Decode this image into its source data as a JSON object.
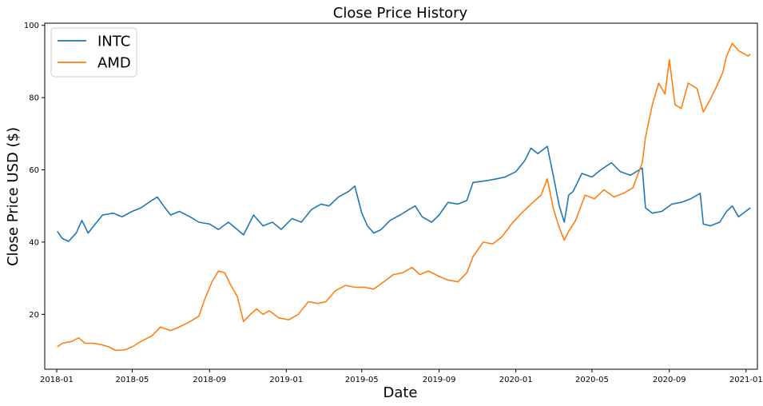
{
  "chart_data": {
    "type": "line",
    "title": "Close Price History",
    "xlabel": "Date",
    "ylabel": "Close Price USD ($)",
    "xlim": [
      "2017-12-13",
      "2021-01-19"
    ],
    "ylim": [
      4.8,
      100.6
    ],
    "x_ticks": [
      "2018-01",
      "2018-05",
      "2018-09",
      "2019-01",
      "2019-05",
      "2019-09",
      "2020-01",
      "2020-05",
      "2020-09",
      "2021-01"
    ],
    "y_ticks": [
      20,
      40,
      60,
      80,
      100
    ],
    "grid": false,
    "legend_position": "top-left",
    "series": [
      {
        "name": "INTC",
        "color": "#1f77b4",
        "points": [
          [
            "2018-01-02",
            43.0
          ],
          [
            "2018-01-10",
            41.0
          ],
          [
            "2018-01-20",
            40.2
          ],
          [
            "2018-02-01",
            42.5
          ],
          [
            "2018-02-10",
            46.0
          ],
          [
            "2018-02-20",
            42.5
          ],
          [
            "2018-03-01",
            44.5
          ],
          [
            "2018-03-15",
            47.5
          ],
          [
            "2018-04-01",
            48.0
          ],
          [
            "2018-04-15",
            47.0
          ],
          [
            "2018-05-01",
            48.5
          ],
          [
            "2018-05-15",
            49.5
          ],
          [
            "2018-06-01",
            51.5
          ],
          [
            "2018-06-10",
            52.5
          ],
          [
            "2018-06-20",
            50.0
          ],
          [
            "2018-07-01",
            47.5
          ],
          [
            "2018-07-15",
            48.5
          ],
          [
            "2018-08-01",
            47.0
          ],
          [
            "2018-08-15",
            45.5
          ],
          [
            "2018-09-01",
            45.0
          ],
          [
            "2018-09-15",
            43.5
          ],
          [
            "2018-10-01",
            45.5
          ],
          [
            "2018-10-15",
            43.5
          ],
          [
            "2018-10-25",
            42.0
          ],
          [
            "2018-11-10",
            47.5
          ],
          [
            "2018-11-25",
            44.5
          ],
          [
            "2018-12-10",
            45.5
          ],
          [
            "2018-12-24",
            43.5
          ],
          [
            "2019-01-10",
            46.5
          ],
          [
            "2019-01-25",
            45.5
          ],
          [
            "2019-02-10",
            49.0
          ],
          [
            "2019-02-25",
            50.5
          ],
          [
            "2019-03-10",
            50.0
          ],
          [
            "2019-03-25",
            52.5
          ],
          [
            "2019-04-10",
            54.0
          ],
          [
            "2019-04-20",
            55.5
          ],
          [
            "2019-05-01",
            48.0
          ],
          [
            "2019-05-10",
            44.5
          ],
          [
            "2019-05-20",
            42.5
          ],
          [
            "2019-06-01",
            43.5
          ],
          [
            "2019-06-15",
            46.0
          ],
          [
            "2019-07-01",
            47.5
          ],
          [
            "2019-07-15",
            49.0
          ],
          [
            "2019-07-25",
            50.0
          ],
          [
            "2019-08-05",
            47.0
          ],
          [
            "2019-08-20",
            45.5
          ],
          [
            "2019-09-01",
            47.5
          ],
          [
            "2019-09-15",
            51.0
          ],
          [
            "2019-10-01",
            50.5
          ],
          [
            "2019-10-15",
            51.5
          ],
          [
            "2019-10-25",
            56.5
          ],
          [
            "2019-11-15",
            57.0
          ],
          [
            "2019-12-01",
            57.5
          ],
          [
            "2019-12-15",
            58.0
          ],
          [
            "2020-01-01",
            59.5
          ],
          [
            "2020-01-15",
            62.5
          ],
          [
            "2020-01-25",
            66.0
          ],
          [
            "2020-02-05",
            64.5
          ],
          [
            "2020-02-20",
            66.5
          ],
          [
            "2020-03-01",
            58.0
          ],
          [
            "2020-03-10",
            50.0
          ],
          [
            "2020-03-18",
            45.5
          ],
          [
            "2020-03-25",
            53.0
          ],
          [
            "2020-04-01",
            54.0
          ],
          [
            "2020-04-15",
            59.0
          ],
          [
            "2020-05-01",
            58.0
          ],
          [
            "2020-05-15",
            60.0
          ],
          [
            "2020-06-01",
            62.0
          ],
          [
            "2020-06-15",
            59.5
          ],
          [
            "2020-07-01",
            58.5
          ],
          [
            "2020-07-20",
            60.5
          ],
          [
            "2020-07-25",
            49.5
          ],
          [
            "2020-08-05",
            48.0
          ],
          [
            "2020-08-20",
            48.5
          ],
          [
            "2020-09-05",
            50.5
          ],
          [
            "2020-09-20",
            51.0
          ],
          [
            "2020-10-05",
            52.0
          ],
          [
            "2020-10-20",
            53.5
          ],
          [
            "2020-10-25",
            45.0
          ],
          [
            "2020-11-05",
            44.5
          ],
          [
            "2020-11-20",
            45.5
          ],
          [
            "2020-12-01",
            48.5
          ],
          [
            "2020-12-10",
            50.0
          ],
          [
            "2020-12-20",
            47.0
          ],
          [
            "2021-01-04",
            49.0
          ],
          [
            "2021-01-08",
            49.5
          ]
        ]
      },
      {
        "name": "AMD",
        "color": "#ff7f0e",
        "points": [
          [
            "2018-01-02",
            11.0
          ],
          [
            "2018-01-10",
            12.0
          ],
          [
            "2018-01-25",
            12.5
          ],
          [
            "2018-02-05",
            13.5
          ],
          [
            "2018-02-15",
            12.0
          ],
          [
            "2018-03-01",
            12.0
          ],
          [
            "2018-03-15",
            11.5
          ],
          [
            "2018-03-25",
            11.0
          ],
          [
            "2018-04-05",
            10.0
          ],
          [
            "2018-04-20",
            10.2
          ],
          [
            "2018-05-01",
            11.0
          ],
          [
            "2018-05-15",
            12.5
          ],
          [
            "2018-06-01",
            14.0
          ],
          [
            "2018-06-15",
            16.5
          ],
          [
            "2018-07-01",
            15.5
          ],
          [
            "2018-07-15",
            16.5
          ],
          [
            "2018-08-01",
            18.0
          ],
          [
            "2018-08-15",
            19.5
          ],
          [
            "2018-08-25",
            24.5
          ],
          [
            "2018-09-05",
            29.0
          ],
          [
            "2018-09-15",
            32.0
          ],
          [
            "2018-09-25",
            31.5
          ],
          [
            "2018-10-05",
            28.0
          ],
          [
            "2018-10-15",
            25.0
          ],
          [
            "2018-10-25",
            18.0
          ],
          [
            "2018-11-05",
            20.0
          ],
          [
            "2018-11-15",
            21.5
          ],
          [
            "2018-11-25",
            20.0
          ],
          [
            "2018-12-05",
            21.0
          ],
          [
            "2018-12-20",
            19.0
          ],
          [
            "2019-01-05",
            18.5
          ],
          [
            "2019-01-20",
            20.0
          ],
          [
            "2019-02-05",
            23.5
          ],
          [
            "2019-02-20",
            23.0
          ],
          [
            "2019-03-05",
            23.5
          ],
          [
            "2019-03-20",
            26.5
          ],
          [
            "2019-04-05",
            28.0
          ],
          [
            "2019-04-20",
            27.5
          ],
          [
            "2019-05-05",
            27.5
          ],
          [
            "2019-05-20",
            27.0
          ],
          [
            "2019-06-05",
            29.0
          ],
          [
            "2019-06-20",
            31.0
          ],
          [
            "2019-07-05",
            31.5
          ],
          [
            "2019-07-20",
            33.0
          ],
          [
            "2019-08-01",
            31.0
          ],
          [
            "2019-08-15",
            32.0
          ],
          [
            "2019-09-01",
            30.5
          ],
          [
            "2019-09-15",
            29.5
          ],
          [
            "2019-10-01",
            29.0
          ],
          [
            "2019-10-15",
            31.5
          ],
          [
            "2019-10-25",
            36.0
          ],
          [
            "2019-11-10",
            40.0
          ],
          [
            "2019-11-25",
            39.5
          ],
          [
            "2019-12-10",
            41.5
          ],
          [
            "2019-12-25",
            45.0
          ],
          [
            "2020-01-10",
            48.0
          ],
          [
            "2020-01-25",
            50.5
          ],
          [
            "2020-02-10",
            53.0
          ],
          [
            "2020-02-20",
            57.5
          ],
          [
            "2020-03-01",
            49.0
          ],
          [
            "2020-03-10",
            44.0
          ],
          [
            "2020-03-18",
            40.5
          ],
          [
            "2020-03-25",
            43.0
          ],
          [
            "2020-04-05",
            46.0
          ],
          [
            "2020-04-20",
            53.0
          ],
          [
            "2020-05-05",
            52.0
          ],
          [
            "2020-05-20",
            54.5
          ],
          [
            "2020-06-05",
            52.5
          ],
          [
            "2020-06-20",
            53.5
          ],
          [
            "2020-07-05",
            55.0
          ],
          [
            "2020-07-20",
            62.0
          ],
          [
            "2020-07-25",
            69.0
          ],
          [
            "2020-08-05",
            78.0
          ],
          [
            "2020-08-15",
            84.0
          ],
          [
            "2020-08-25",
            81.0
          ],
          [
            "2020-09-01",
            90.5
          ],
          [
            "2020-09-10",
            78.0
          ],
          [
            "2020-09-20",
            77.0
          ],
          [
            "2020-10-01",
            84.0
          ],
          [
            "2020-10-15",
            82.5
          ],
          [
            "2020-10-25",
            76.0
          ],
          [
            "2020-11-05",
            79.5
          ],
          [
            "2020-11-15",
            83.0
          ],
          [
            "2020-11-25",
            87.0
          ],
          [
            "2020-12-01",
            91.5
          ],
          [
            "2020-12-10",
            95.0
          ],
          [
            "2020-12-20",
            93.0
          ],
          [
            "2021-01-04",
            91.5
          ],
          [
            "2021-01-08",
            92.0
          ]
        ]
      }
    ]
  }
}
